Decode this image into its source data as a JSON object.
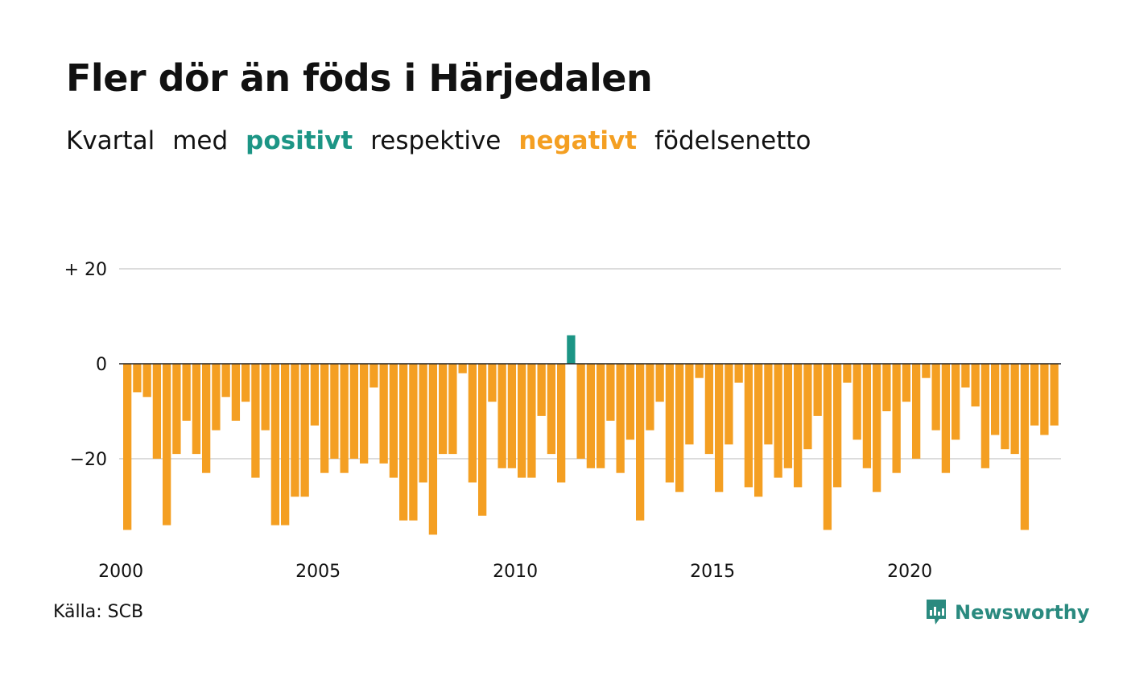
{
  "title": "Fler dör än föds i Härjedalen",
  "subtitle": {
    "part1": "Kvartal",
    "part2": "med",
    "positive": "positivt",
    "part3": "respektive",
    "negative": "negativt",
    "part4": "födelsenetto"
  },
  "source": "Källa: SCB",
  "brand": "Newsworthy",
  "colors": {
    "positive": "#1c9585",
    "negative": "#f49f22",
    "grid": "#dcdcdc",
    "zero_line": "#222222",
    "brand": "#2a8a7f"
  },
  "chart_data": {
    "type": "bar",
    "start_year": 2000,
    "periods_per_year": 4,
    "ylim": [
      -36,
      20
    ],
    "y_ticks": [
      {
        "value": 20,
        "label": "+ 20"
      },
      {
        "value": 0,
        "label": "0"
      },
      {
        "value": -20,
        "label": "−20"
      }
    ],
    "x_ticks": [
      "2000",
      "2005",
      "2010",
      "2015",
      "2020"
    ],
    "grid": true,
    "values": [
      -35,
      -6,
      -7,
      -20,
      -34,
      -19,
      -12,
      -19,
      -23,
      -14,
      -7,
      -12,
      -8,
      -24,
      -14,
      -34,
      -34,
      -28,
      -28,
      -13,
      -23,
      -20,
      -23,
      -20,
      -21,
      -5,
      -21,
      -24,
      -33,
      -33,
      -25,
      -36,
      -19,
      -19,
      -2,
      -25,
      -32,
      -8,
      -22,
      -22,
      -24,
      -24,
      -11,
      -19,
      -25,
      6,
      -20,
      -22,
      -22,
      -12,
      -23,
      -16,
      -33,
      -14,
      -8,
      -25,
      -27,
      -17,
      -3,
      -19,
      -27,
      -17,
      -4,
      -26,
      -28,
      -17,
      -24,
      -22,
      -26,
      -18,
      -11,
      -35,
      -26,
      -4,
      -16,
      -22,
      -27,
      -10,
      -23,
      -8,
      -20,
      -3,
      -14,
      -23,
      -16,
      -5,
      -9,
      -22,
      -15,
      -18,
      -19,
      -35,
      -13,
      -15,
      -13
    ]
  }
}
